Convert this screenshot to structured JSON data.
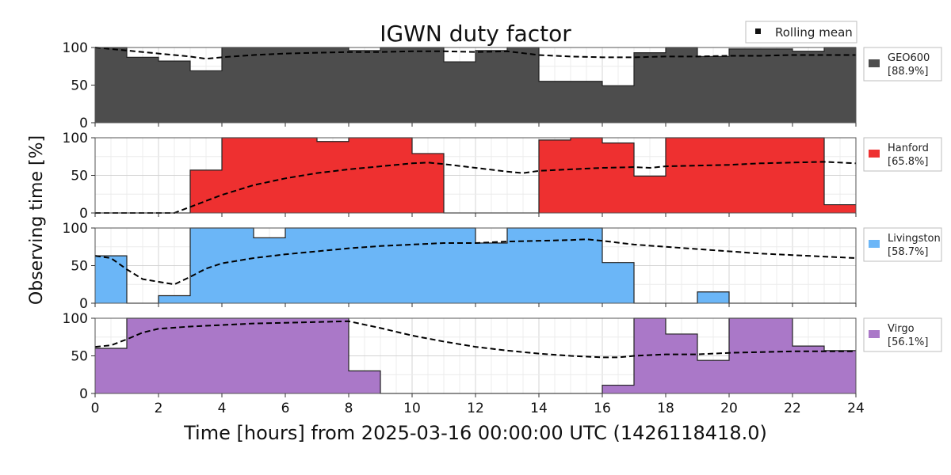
{
  "chart_data": {
    "type": "area",
    "title": "IGWN duty factor",
    "xlabel": "Time [hours] from 2025-03-16 00:00:00 UTC (1426118418.0)",
    "ylabel": "Observing time [%]",
    "xlim": [
      0,
      24
    ],
    "ylim": [
      0,
      100
    ],
    "x_ticks": [
      0,
      2,
      4,
      6,
      8,
      10,
      12,
      14,
      16,
      18,
      20,
      22,
      24
    ],
    "y_ticks": [
      0,
      50,
      100
    ],
    "grid": true,
    "legend_label": "Rolling mean",
    "legend_placement": "top-right",
    "bin_edges_hours": [
      0,
      1,
      2,
      3,
      4,
      5,
      6,
      7,
      8,
      9,
      10,
      11,
      12,
      13,
      14,
      15,
      16,
      17,
      18,
      19,
      20,
      21,
      22,
      23,
      24
    ],
    "series": [
      {
        "name": "GEO600",
        "summary": "[88.9%]",
        "color": "#4d4d4d",
        "values": [
          100,
          87,
          82,
          69,
          100,
          100,
          100,
          100,
          96,
          100,
          100,
          81,
          96,
          100,
          55,
          55,
          49,
          93,
          100,
          88,
          98,
          98,
          95,
          100
        ],
        "rolling_mean": {
          "x": [
            0,
            1,
            2,
            3,
            3.5,
            4,
            5,
            6,
            7,
            8,
            9,
            10,
            11,
            12,
            13,
            14,
            15,
            16,
            17,
            18,
            19,
            20,
            21,
            22,
            23,
            24
          ],
          "y": [
            100,
            96,
            92,
            88,
            85,
            87,
            90,
            92,
            93,
            94,
            94,
            95,
            95,
            94,
            95,
            90,
            88,
            87,
            87,
            88,
            88,
            89,
            89,
            90,
            90,
            90
          ]
        }
      },
      {
        "name": "Hanford",
        "summary": "[65.8%]",
        "color": "#ee3030",
        "values": [
          0,
          0,
          0,
          57,
          100,
          100,
          100,
          95,
          100,
          100,
          79,
          0,
          0,
          0,
          97,
          100,
          93,
          49,
          100,
          100,
          100,
          100,
          100,
          11
        ],
        "rolling_mean": {
          "x": [
            0,
            1,
            2,
            2.5,
            3,
            4,
            5,
            6,
            7,
            8,
            9,
            10,
            10.5,
            11,
            12,
            13,
            13.5,
            14,
            15,
            16,
            17,
            17.5,
            18,
            19,
            20,
            21,
            22,
            23,
            24
          ],
          "y": [
            0,
            0,
            0,
            0,
            8,
            24,
            37,
            46,
            53,
            58,
            62,
            66,
            67,
            65,
            60,
            55,
            53,
            56,
            58,
            60,
            61,
            60,
            62,
            63,
            64,
            66,
            67,
            68,
            66
          ]
        }
      },
      {
        "name": "Livingston",
        "summary": "[58.7%]",
        "color": "#6bb6f7",
        "values": [
          63,
          0,
          10,
          100,
          100,
          87,
          100,
          100,
          100,
          100,
          100,
          100,
          80,
          100,
          100,
          100,
          54,
          0,
          0,
          15,
          0,
          0,
          0,
          0
        ],
        "rolling_mean": {
          "x": [
            0,
            0.5,
            1,
            1.5,
            2.5,
            3,
            3.5,
            4,
            5,
            6,
            7,
            8,
            9,
            10,
            11,
            12,
            13,
            14,
            15,
            15.5,
            16,
            17,
            18,
            19,
            20,
            21,
            22,
            23,
            24
          ],
          "y": [
            63,
            60,
            45,
            32,
            25,
            35,
            46,
            53,
            60,
            65,
            69,
            73,
            76,
            78,
            80,
            80,
            82,
            83,
            84,
            85,
            83,
            78,
            75,
            72,
            69,
            66,
            64,
            62,
            60
          ]
        }
      },
      {
        "name": "Virgo",
        "summary": "[56.1%]",
        "color": "#aa78c8",
        "values": [
          60,
          100,
          100,
          100,
          100,
          100,
          100,
          100,
          30,
          0,
          0,
          0,
          0,
          0,
          0,
          0,
          11,
          100,
          79,
          44,
          100,
          100,
          63,
          57
        ],
        "rolling_mean": {
          "x": [
            0,
            0.5,
            1,
            1.5,
            2,
            3,
            4,
            5,
            6,
            7,
            8,
            9,
            10,
            11,
            12,
            13,
            14,
            15,
            16,
            16.5,
            17,
            18,
            19,
            20,
            21,
            22,
            23,
            24
          ],
          "y": [
            62,
            64,
            72,
            81,
            86,
            89,
            91,
            93,
            94,
            95,
            96,
            87,
            77,
            69,
            62,
            57,
            53,
            50,
            48,
            48,
            50,
            52,
            52,
            54,
            55,
            56,
            56,
            56
          ]
        }
      }
    ]
  }
}
